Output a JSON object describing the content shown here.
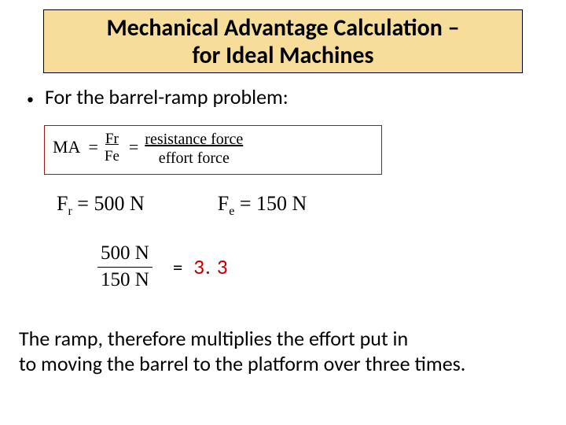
{
  "title": {
    "line1": "Mechanical Advantage Calculation –",
    "line2": "for Ideal Machines",
    "bg_color": "#f7dd9a",
    "border_color": "#000000",
    "font_size": 30,
    "font_weight": "bold"
  },
  "bullet": {
    "marker": "•",
    "text": "For the barrel-ramp problem:",
    "font_size": 26
  },
  "formula_box": {
    "border_color": "#a01818",
    "ma_label": "MA",
    "eq": "=",
    "frac1_num": "Fr",
    "frac1_den": "Fe",
    "frac2_num": "resistance force",
    "frac2_den": "effort force",
    "font_family": "Times New Roman"
  },
  "values": {
    "fr_label": "F",
    "fr_sub": "r",
    "fr_eq": " = ",
    "fr_val": "500 N",
    "fe_label": "F",
    "fe_sub": "e",
    "fe_eq": " = ",
    "fe_val": "150 N",
    "font_size": 26
  },
  "calc": {
    "num": "500 N",
    "den": "150 N",
    "eq": "=",
    "result": "3. 3",
    "result_color": "#c00000",
    "font_size": 25
  },
  "conclusion": {
    "line1": "The ramp, therefore multiplies the effort put in",
    "line2": "to moving the barrel to the platform over three times.",
    "font_size": 26
  },
  "colors": {
    "background": "#ffffff",
    "text": "#000000"
  }
}
